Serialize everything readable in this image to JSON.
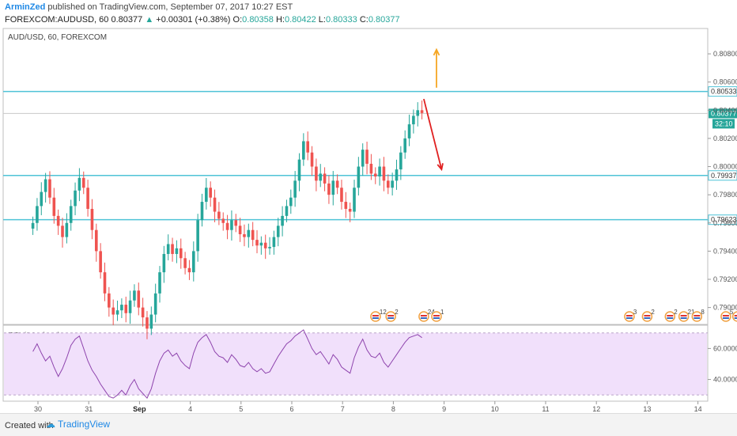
{
  "header": {
    "author": "ArminZed",
    "published": "published on TradingView.com, September 07, 2017 10:27 EST"
  },
  "symbol_line": {
    "symbol": "FOREXCOM:AUDUSD, 60",
    "last": "0.80377",
    "change_arrow": "▲",
    "change": "+0.00301 (+0.38%)",
    "o_label": "O:",
    "o": "0.80358",
    "h_label": "H:",
    "h": "0.80422",
    "l_label": "L:",
    "l": "0.80333",
    "c_label": "C:",
    "c": "0.80377"
  },
  "footer": {
    "created_with": "Created with",
    "brand": "TradingView",
    "brand_icon": "tradingview-logo-icon"
  },
  "chart_data": [
    {
      "type": "candlestick",
      "title": "AUD/USD, 60, FOREXCOM",
      "y_ticks": [
        "0.80800",
        "0.80600",
        "0.80400",
        "0.80200",
        "0.80000",
        "0.79800",
        "0.79600",
        "0.79400",
        "0.79200",
        "0.79000"
      ],
      "y_tick_values": [
        0.808,
        0.806,
        0.804,
        0.802,
        0.8,
        0.798,
        0.796,
        0.794,
        0.792,
        0.79
      ],
      "ylim": [
        0.7888,
        0.8098
      ],
      "x_ticks": [
        "30",
        "31",
        "Sep",
        "4",
        "5",
        "6",
        "7",
        "8",
        "9",
        "10",
        "11",
        "12",
        "13",
        "14"
      ],
      "x_tick_day_index": [
        0,
        1,
        2,
        3,
        4,
        5,
        6,
        7,
        8,
        9,
        10,
        11,
        12,
        13
      ],
      "grid": false,
      "price_label": {
        "value": 0.80377,
        "text": "0.80377"
      },
      "countdown": "32:10",
      "horizontal_lines": [
        {
          "value": 0.80533,
          "text": "0.80533",
          "color": "#4fc3d7"
        },
        {
          "value": 0.79937,
          "text": "0.79937",
          "color": "#4fc3d7"
        },
        {
          "value": 0.79623,
          "text": "0.79623",
          "color": "#4fc3d7"
        }
      ],
      "arrows": [
        {
          "color": "#f5a623",
          "direction": "up",
          "from_value": 0.8056,
          "to_value": 0.8083,
          "day": 7.85
        },
        {
          "color": "#e02020",
          "direction": "down",
          "from_value": 0.8048,
          "to_value": 0.7998,
          "day_from": 7.6,
          "day_to": 7.95
        }
      ],
      "closes": [
        0.796,
        0.7972,
        0.7982,
        0.7991,
        0.7978,
        0.7965,
        0.7958,
        0.795,
        0.796,
        0.7972,
        0.7983,
        0.7992,
        0.7985,
        0.797,
        0.7955,
        0.794,
        0.7925,
        0.791,
        0.79,
        0.7895,
        0.7898,
        0.7902,
        0.7896,
        0.7905,
        0.7912,
        0.79,
        0.7893,
        0.7885,
        0.7895,
        0.791,
        0.7925,
        0.7938,
        0.7945,
        0.7938,
        0.7942,
        0.7935,
        0.7928,
        0.7925,
        0.794,
        0.7962,
        0.7975,
        0.7985,
        0.7978,
        0.7968,
        0.7963,
        0.796,
        0.7955,
        0.7962,
        0.7958,
        0.7952,
        0.795,
        0.7955,
        0.7948,
        0.7944,
        0.7946,
        0.7942,
        0.7943,
        0.795,
        0.7958,
        0.7965,
        0.7972,
        0.7978,
        0.799,
        0.8005,
        0.8018,
        0.801,
        0.8,
        0.799,
        0.7995,
        0.7988,
        0.798,
        0.799,
        0.7985,
        0.7975,
        0.797,
        0.7968,
        0.7985,
        0.8,
        0.8012,
        0.8002,
        0.7995,
        0.7993,
        0.8,
        0.799,
        0.7985,
        0.799,
        0.7998,
        0.801,
        0.802,
        0.803,
        0.8036,
        0.804,
        0.8038
      ],
      "candle_day_start": -0.1,
      "candle_day_step": 0.0833
    },
    {
      "type": "line",
      "title": "RSI (14, close)",
      "y_ticks": [
        "60.0000",
        "40.0000"
      ],
      "y_tick_values": [
        60,
        40
      ],
      "ylim": [
        26,
        75
      ],
      "band": [
        30,
        70
      ],
      "series": [
        {
          "values": [
            58,
            63,
            57,
            52,
            55,
            48,
            42,
            47,
            54,
            62,
            66,
            68,
            60,
            52,
            46,
            42,
            37,
            33,
            29,
            28,
            30,
            33,
            30,
            36,
            40,
            34,
            31,
            28,
            34,
            44,
            52,
            57,
            59,
            55,
            57,
            52,
            49,
            47,
            57,
            64,
            67,
            69,
            64,
            58,
            55,
            54,
            51,
            56,
            53,
            49,
            48,
            51,
            47,
            45,
            47,
            44,
            45,
            50,
            55,
            59,
            63,
            65,
            68,
            70,
            72,
            66,
            60,
            56,
            58,
            54,
            50,
            56,
            53,
            48,
            46,
            44,
            54,
            61,
            66,
            59,
            55,
            54,
            57,
            51,
            48,
            52,
            56,
            60,
            64,
            67,
            68,
            69,
            67
          ]
        }
      ]
    }
  ],
  "event_markers": [
    {
      "label": "12",
      "day": 6.65
    },
    {
      "label": "2",
      "day": 6.95
    },
    {
      "label": "24",
      "day": 7.6
    },
    {
      "label": "1",
      "day": 7.85
    },
    {
      "label": "3",
      "day": 11.65
    },
    {
      "label": "2",
      "day": 12.0
    },
    {
      "label": "2",
      "day": 12.45
    },
    {
      "label": "21",
      "day": 12.72
    },
    {
      "label": "8",
      "day": 12.98
    },
    {
      "label": "5",
      "day": 13.55
    },
    {
      "label": "2",
      "day": 13.78
    }
  ]
}
